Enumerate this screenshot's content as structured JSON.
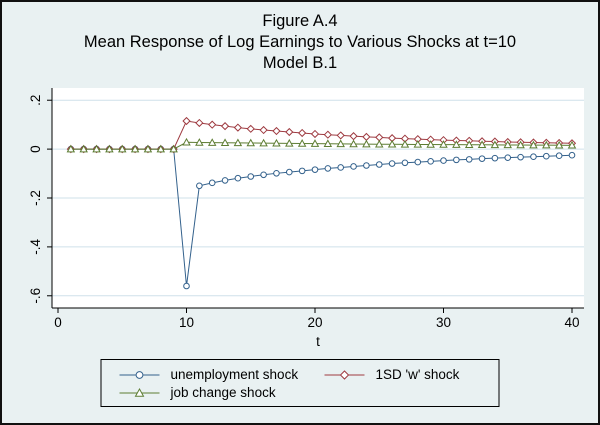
{
  "chart_data": {
    "type": "line",
    "title": "Figure A.4",
    "subtitle": "Mean Response of Log Earnings to Various Shocks at t=10",
    "subtitle2": "Model B.1",
    "xlabel": "t",
    "grid": true,
    "legend_position": "bottom",
    "xlim": [
      0,
      40
    ],
    "ylim": [
      -0.65,
      0.25
    ],
    "xticks": [
      0,
      10,
      20,
      30,
      40
    ],
    "yticks": [
      0.2,
      0,
      -0.2,
      -0.4,
      -0.6
    ],
    "ytick_labels": [
      ".2",
      "0",
      "-.2",
      "-.4",
      "-.6"
    ],
    "x": [
      1,
      2,
      3,
      4,
      5,
      6,
      7,
      8,
      9,
      10,
      11,
      12,
      13,
      14,
      15,
      16,
      17,
      18,
      19,
      20,
      21,
      22,
      23,
      24,
      25,
      26,
      27,
      28,
      29,
      30,
      31,
      32,
      33,
      34,
      35,
      36,
      37,
      38,
      39,
      40
    ],
    "series": [
      {
        "name": "unemployment shock",
        "marker": "circle",
        "color": "#33618c",
        "values": [
          0,
          0,
          0,
          0,
          0,
          0,
          0,
          0,
          0,
          -0.56,
          -0.15,
          -0.138,
          -0.128,
          -0.119,
          -0.112,
          -0.105,
          -0.099,
          -0.094,
          -0.089,
          -0.084,
          -0.079,
          -0.075,
          -0.071,
          -0.067,
          -0.063,
          -0.059,
          -0.056,
          -0.053,
          -0.05,
          -0.047,
          -0.044,
          -0.042,
          -0.039,
          -0.037,
          -0.035,
          -0.033,
          -0.031,
          -0.029,
          -0.027,
          -0.025
        ]
      },
      {
        "name": "1SD 'w' shock",
        "marker": "diamond",
        "color": "#9e3a40",
        "values": [
          0,
          0,
          0,
          0,
          0,
          0,
          0,
          0,
          0,
          0.115,
          0.107,
          0.1,
          0.094,
          0.088,
          0.083,
          0.078,
          0.074,
          0.07,
          0.066,
          0.062,
          0.059,
          0.056,
          0.053,
          0.05,
          0.048,
          0.045,
          0.043,
          0.041,
          0.039,
          0.037,
          0.035,
          0.034,
          0.032,
          0.031,
          0.029,
          0.028,
          0.027,
          0.026,
          0.025,
          0.024
        ]
      },
      {
        "name": "job change shock",
        "marker": "triangle",
        "color": "#5d7d33",
        "values": [
          0,
          0,
          0,
          0,
          0,
          0,
          0,
          0,
          0,
          0.028,
          0.027,
          0.0265,
          0.026,
          0.0255,
          0.025,
          0.0245,
          0.024,
          0.0235,
          0.023,
          0.0225,
          0.022,
          0.0215,
          0.021,
          0.0205,
          0.02,
          0.0197,
          0.0194,
          0.0191,
          0.0188,
          0.0185,
          0.0182,
          0.0179,
          0.0176,
          0.0173,
          0.017,
          0.0167,
          0.0164,
          0.0161,
          0.0158,
          0.0155
        ]
      }
    ]
  },
  "colors": {
    "background": "#e9f1f2",
    "plot_background": "#ffffff",
    "gridline": "#cfe0ea",
    "axis": "#000000"
  }
}
